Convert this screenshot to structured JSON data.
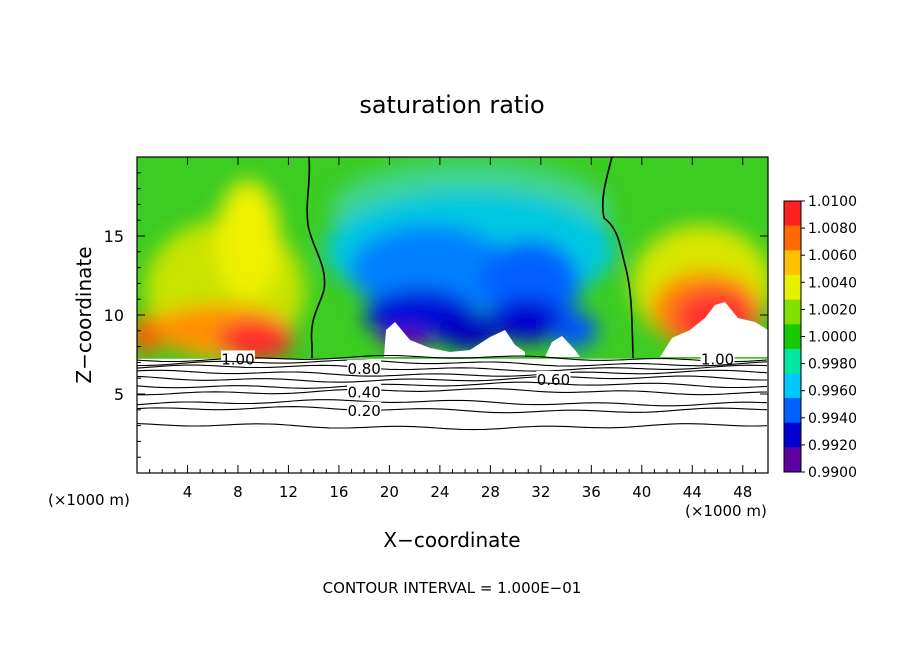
{
  "chart_data": {
    "type": "heatmap",
    "title": "saturation ratio",
    "xlabel": "X−coordinate",
    "ylabel": "Z−coordinate",
    "x_unit_left": "(×1000 m)",
    "x_unit_right": "(×1000 m)",
    "footer": "CONTOUR INTERVAL = 1.000E−01",
    "xlim": [
      0,
      50
    ],
    "ylim": [
      0,
      20
    ],
    "x_ticks": [
      4,
      8,
      12,
      16,
      20,
      24,
      28,
      32,
      36,
      40,
      44,
      48
    ],
    "x_tick_labels": [
      "4",
      "8",
      "12",
      "16",
      "20",
      "24",
      "28",
      "32",
      "36",
      "40",
      "44",
      "48"
    ],
    "y_ticks": [
      5,
      10,
      15
    ],
    "y_tick_labels": [
      "5",
      "10",
      "15"
    ],
    "colorbar": {
      "min": 0.99,
      "max": 1.01,
      "labels": [
        "1.0100",
        "1.0080",
        "1.0060",
        "1.0040",
        "1.0020",
        "1.0000",
        "0.9980",
        "0.9960",
        "0.9940",
        "0.9920",
        "0.9900"
      ],
      "colors": [
        "#ff2020",
        "#ff6a00",
        "#ffc000",
        "#e8f000",
        "#84e000",
        "#18c800",
        "#00e8a0",
        "#00c8ff",
        "#0060ff",
        "#0000d0",
        "#6000a0"
      ]
    },
    "cloud_region": {
      "z_base": 7.3,
      "boundary_x": [
        14,
        39
      ],
      "boundary_contour_value": 1.0
    },
    "contour_lines": [
      {
        "level": 1.0,
        "z": 7.25,
        "label": "1.00"
      },
      {
        "level": 0.9,
        "z": 6.95,
        "label": ""
      },
      {
        "level": 0.8,
        "z": 6.65,
        "label": "0.80"
      },
      {
        "level": 0.7,
        "z": 6.3,
        "label": ""
      },
      {
        "level": 0.6,
        "z": 5.95,
        "label": "0.60"
      },
      {
        "level": 0.5,
        "z": 5.55,
        "label": ""
      },
      {
        "level": 0.4,
        "z": 5.15,
        "label": "0.40"
      },
      {
        "level": 0.3,
        "z": 4.45,
        "label": ""
      },
      {
        "level": 0.2,
        "z": 4.0,
        "label": "0.20"
      },
      {
        "level": 0.1,
        "z": 2.95,
        "label": ""
      }
    ]
  }
}
